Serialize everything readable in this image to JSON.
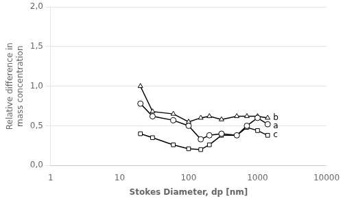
{
  "chart_data": {
    "type": "line",
    "x": [
      20,
      30,
      60,
      100,
      150,
      200,
      300,
      500,
      700,
      1000,
      1400
    ],
    "series": [
      {
        "name": "a",
        "marker": "circle",
        "values": [
          0.78,
          0.62,
          0.57,
          0.5,
          0.33,
          0.38,
          0.4,
          0.38,
          0.5,
          0.6,
          0.52
        ]
      },
      {
        "name": "b",
        "marker": "triangle",
        "values": [
          1.0,
          0.68,
          0.65,
          0.55,
          0.6,
          0.62,
          0.58,
          0.62,
          0.62,
          0.62,
          0.6
        ]
      },
      {
        "name": "c",
        "marker": "square",
        "values": [
          0.4,
          0.35,
          0.26,
          0.21,
          0.2,
          0.26,
          0.38,
          0.38,
          0.48,
          0.44,
          0.38
        ]
      }
    ],
    "annotations": [
      {
        "text": "a",
        "x": 1400,
        "y": 0.52
      },
      {
        "text": "b",
        "x": 1400,
        "y": 0.6
      },
      {
        "text": "c",
        "x": 1400,
        "y": 0.38
      }
    ],
    "color": "#000000",
    "xlabel": "Stokes Diameter, dp [nm]",
    "ylabel": "Relative difference in\nmass concentration",
    "log": "x",
    "xlim": [
      1,
      10000
    ],
    "xticks": [
      1,
      10,
      100,
      1000,
      10000
    ],
    "ylim": [
      0.0,
      2.0
    ],
    "yticks": [
      {
        "value": 0.0,
        "label": "0,0"
      },
      {
        "value": 0.5,
        "label": "0,5"
      },
      {
        "value": 1.0,
        "label": "1,0"
      },
      {
        "value": 1.5,
        "label": "1,5"
      },
      {
        "value": 2.0,
        "label": "2,0"
      }
    ],
    "grid": true
  }
}
